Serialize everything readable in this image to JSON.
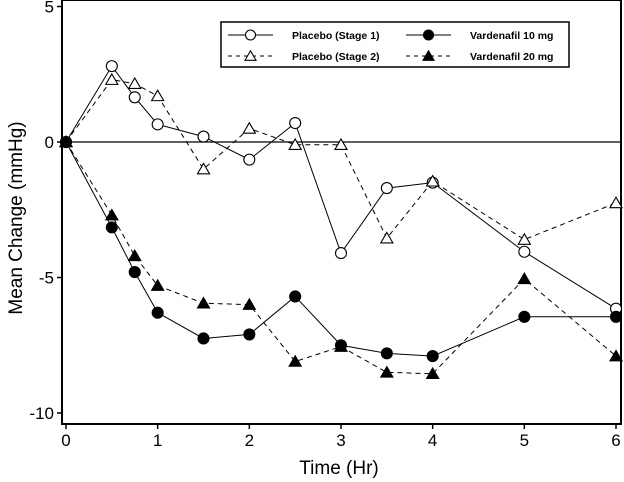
{
  "chart_data": {
    "type": "line",
    "title": "",
    "xlabel": "Time (Hr)",
    "ylabel": "Mean Change (mmHg)",
    "xlim": [
      0,
      6
    ],
    "ylim": [
      -10.4,
      5
    ],
    "xticks": [
      0,
      1,
      2,
      3,
      4,
      5,
      6
    ],
    "yticks": [
      5,
      0,
      -5,
      -10
    ],
    "grid": false,
    "reference_line_y": 0,
    "legend_position": "top-right",
    "x": [
      0,
      0.5,
      0.75,
      1,
      1.5,
      2,
      2.5,
      3,
      3.5,
      4,
      5,
      6
    ],
    "series": [
      {
        "name": "Placebo (Stage 1)",
        "marker": "open-circle",
        "line": "solid",
        "values": [
          0,
          2.8,
          1.65,
          0.65,
          0.2,
          -0.65,
          0.7,
          -4.1,
          -1.7,
          -1.5,
          -4.05,
          -6.15
        ]
      },
      {
        "name": "Placebo (Stage 2)",
        "marker": "open-triangle",
        "line": "dashed",
        "values": [
          0,
          2.3,
          2.15,
          1.7,
          -1.0,
          0.5,
          -0.1,
          -0.1,
          -3.55,
          -1.45,
          -3.6,
          -2.25
        ]
      },
      {
        "name": "Vardenafil 10 mg",
        "marker": "filled-circle",
        "line": "solid",
        "values": [
          0,
          -3.15,
          -4.8,
          -6.3,
          -7.25,
          -7.1,
          -5.7,
          -7.5,
          -7.8,
          -7.9,
          -6.45,
          -6.45
        ]
      },
      {
        "name": "Vardenafil 20 mg",
        "marker": "filled-triangle",
        "line": "dashed",
        "values": [
          0,
          -2.7,
          -4.2,
          -5.3,
          -5.95,
          -6.0,
          -8.1,
          -7.55,
          -8.5,
          -8.55,
          -5.05,
          -7.9
        ]
      }
    ]
  }
}
